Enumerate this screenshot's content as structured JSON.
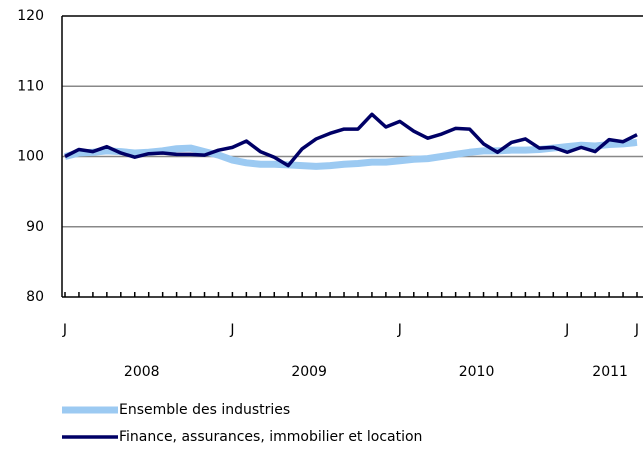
{
  "chart_data": {
    "type": "line",
    "categories": [
      "J",
      null,
      null,
      null,
      null,
      null,
      null,
      null,
      null,
      null,
      null,
      null,
      "J",
      null,
      null,
      null,
      null,
      null,
      null,
      null,
      null,
      null,
      null,
      null,
      "J",
      null,
      null,
      null,
      null,
      null,
      null,
      null,
      null,
      null,
      null,
      null,
      "J",
      null,
      null,
      null,
      null,
      "J"
    ],
    "years": [
      "2008",
      "2009",
      "2010",
      "2011"
    ],
    "series": [
      {
        "name": "Ensemble des industries",
        "color": "#9ccaf2",
        "values": [
          100,
          100.5,
          100.6,
          100.8,
          100.7,
          100.5,
          100.6,
          100.8,
          101.1,
          101.2,
          100.7,
          100.2,
          99.5,
          99.1,
          98.9,
          98.9,
          98.8,
          98.7,
          98.6,
          98.7,
          98.9,
          99.0,
          99.2,
          99.2,
          99.4,
          99.6,
          99.7,
          100.0,
          100.3,
          100.6,
          100.8,
          100.8,
          100.9,
          100.9,
          101.0,
          101.2,
          101.4,
          101.6,
          101.5,
          101.7,
          101.8,
          102.0
        ]
      },
      {
        "name": "Finance, assurances, immobilier et location",
        "color": "#000066",
        "values": [
          100,
          101,
          100.7,
          101.4,
          100.5,
          99.9,
          100.4,
          100.5,
          100.3,
          100.3,
          100.2,
          100.9,
          101.3,
          102.2,
          100.7,
          99.9,
          98.7,
          101.1,
          102.5,
          103.3,
          103.9,
          103.9,
          106,
          104.2,
          105,
          103.6,
          102.6,
          103.2,
          104,
          103.9,
          101.8,
          100.6,
          102,
          102.5,
          101.2,
          101.3,
          100.6,
          101.3,
          100.7,
          102.4,
          102.1,
          103.1
        ]
      }
    ],
    "ylim": [
      80,
      120
    ],
    "yticks": [
      80,
      90,
      100,
      110,
      120
    ],
    "grid": true
  }
}
